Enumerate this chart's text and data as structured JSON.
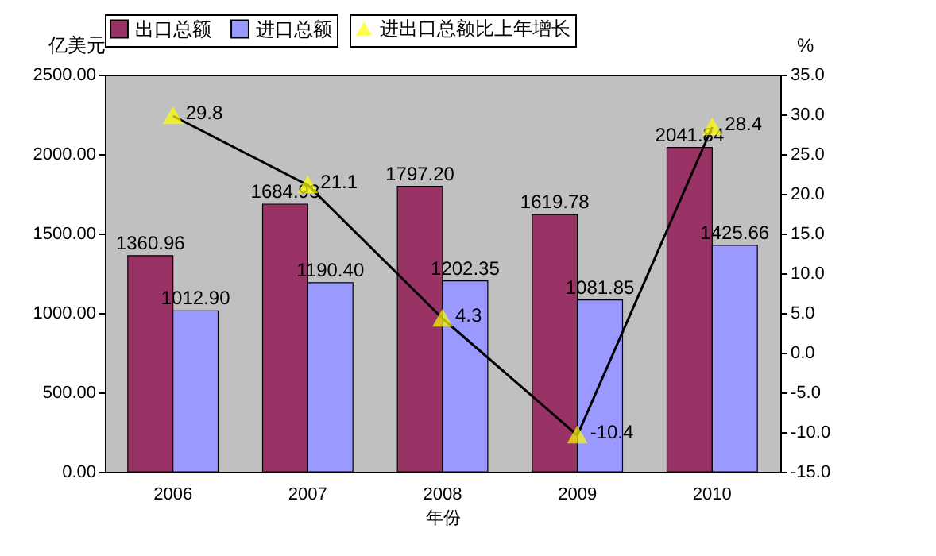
{
  "chart_data": {
    "type": "bar",
    "categories": [
      "2006",
      "2007",
      "2008",
      "2009",
      "2010"
    ],
    "xlabel": "年份",
    "ylabel": "亿美元",
    "y2label": "%",
    "series": [
      {
        "name": "出口总额",
        "color": "#993366",
        "values": [
          1360.96,
          1684.93,
          1797.2,
          1619.78,
          2041.84
        ],
        "value_labels": [
          "1360.96",
          "1684.93",
          "1797.20",
          "1619.78",
          "2041.84"
        ]
      },
      {
        "name": "进口总额",
        "color": "#9999ff",
        "values": [
          1012.9,
          1190.4,
          1202.35,
          1081.85,
          1425.66
        ],
        "value_labels": [
          "1012.90",
          "1190.40",
          "1202.35",
          "1081.85",
          "1425.66"
        ]
      },
      {
        "name": "进出口总额比上年增长",
        "type": "line",
        "axis": "y2",
        "color": "#000000",
        "marker": "triangle",
        "values": [
          29.8,
          21.1,
          4.3,
          -10.4,
          28.4
        ],
        "value_labels": [
          "29.8",
          "21.1",
          "4.3",
          "-10.4",
          "28.4"
        ]
      }
    ],
    "ylim": [
      0,
      2500
    ],
    "yticks": [
      {
        "value": 0,
        "label": "0.00"
      },
      {
        "value": 500,
        "label": "500.00"
      },
      {
        "value": 1000,
        "label": "1000.00"
      },
      {
        "value": 1500,
        "label": "1500.00"
      },
      {
        "value": 2000,
        "label": "2000.00"
      },
      {
        "value": 2500,
        "label": "2500.00"
      }
    ],
    "y2lim": [
      -15,
      35
    ],
    "y2ticks": [
      {
        "value": -15,
        "label": "-15.0"
      },
      {
        "value": -10,
        "label": "-10.0"
      },
      {
        "value": -5,
        "label": "-5.0"
      },
      {
        "value": 0,
        "label": "0.0"
      },
      {
        "value": 5,
        "label": "5.0"
      },
      {
        "value": 10,
        "label": "10.0"
      },
      {
        "value": 15,
        "label": "15.0"
      },
      {
        "value": 20,
        "label": "20.0"
      },
      {
        "value": 25,
        "label": "25.0"
      },
      {
        "value": 30,
        "label": "30.0"
      },
      {
        "value": 35,
        "label": "35.0"
      }
    ],
    "legend": "top",
    "grid": false
  }
}
